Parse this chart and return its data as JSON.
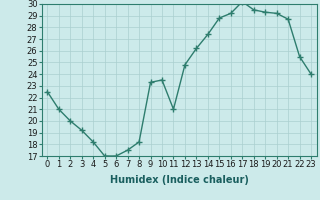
{
  "x": [
    0,
    1,
    2,
    3,
    4,
    5,
    6,
    7,
    8,
    9,
    10,
    11,
    12,
    13,
    14,
    15,
    16,
    17,
    18,
    19,
    20,
    21,
    22,
    23
  ],
  "y": [
    22.5,
    21.0,
    20.0,
    19.2,
    18.2,
    17.0,
    17.0,
    17.5,
    18.2,
    23.3,
    23.5,
    21.0,
    24.8,
    26.2,
    27.4,
    28.8,
    29.2,
    30.2,
    29.5,
    29.3,
    29.2,
    28.7,
    25.5,
    24.0
  ],
  "line_color": "#2e7d6e",
  "marker": "+",
  "marker_size": 4,
  "marker_lw": 1.0,
  "bg_color": "#cceaea",
  "grid_color": "#aacfcf",
  "xlabel": "Humidex (Indice chaleur)",
  "xlim": [
    -0.5,
    23.5
  ],
  "ylim": [
    17,
    30
  ],
  "yticks": [
    17,
    18,
    19,
    20,
    21,
    22,
    23,
    24,
    25,
    26,
    27,
    28,
    29,
    30
  ],
  "xticks": [
    0,
    1,
    2,
    3,
    4,
    5,
    6,
    7,
    8,
    9,
    10,
    11,
    12,
    13,
    14,
    15,
    16,
    17,
    18,
    19,
    20,
    21,
    22,
    23
  ],
  "label_fontsize": 7,
  "tick_fontsize": 6,
  "line_width": 1.0
}
